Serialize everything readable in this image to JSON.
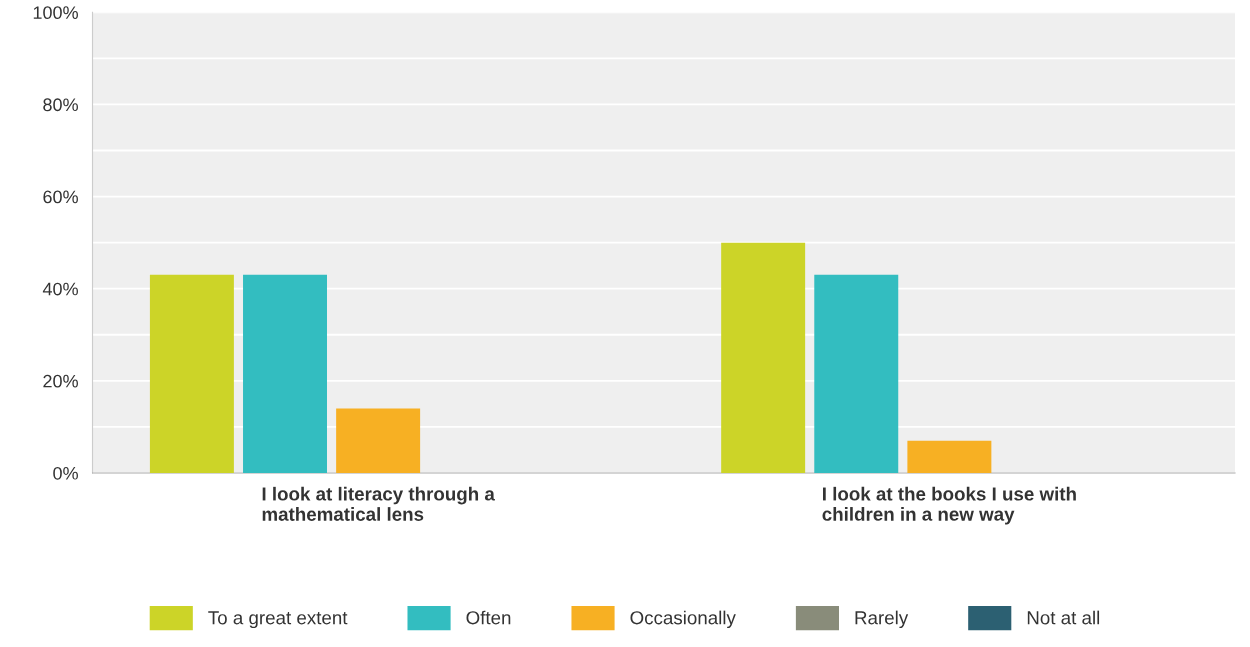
{
  "chart_data": {
    "type": "bar",
    "categories": [
      "I look at literacy through a\nmathematical lens",
      "I look at the books I use with\nchildren in a new way"
    ],
    "series": [
      {
        "name": "To a great extent",
        "color": "#ccd428",
        "values": [
          43,
          50
        ]
      },
      {
        "name": "Often",
        "color": "#33bdc0",
        "values": [
          43,
          43
        ]
      },
      {
        "name": "Occasionally",
        "color": "#f7b023",
        "values": [
          14,
          7
        ]
      },
      {
        "name": "Rarely",
        "color": "#898c7a",
        "values": [
          0,
          0
        ]
      },
      {
        "name": "Not at all",
        "color": "#2c6072",
        "values": [
          0,
          0
        ]
      }
    ],
    "ylim": [
      0,
      100
    ],
    "yticks": [
      {
        "value": 0,
        "label": "0%"
      },
      {
        "value": 10,
        "label": null
      },
      {
        "value": 20,
        "label": "20%"
      },
      {
        "value": 30,
        "label": null
      },
      {
        "value": 40,
        "label": "40%"
      },
      {
        "value": 50,
        "label": null
      },
      {
        "value": 60,
        "label": "60%"
      },
      {
        "value": 70,
        "label": null
      },
      {
        "value": 80,
        "label": "80%"
      },
      {
        "value": 90,
        "label": null
      },
      {
        "value": 100,
        "label": "100%"
      }
    ],
    "grid": "y",
    "legend": "bottom"
  }
}
